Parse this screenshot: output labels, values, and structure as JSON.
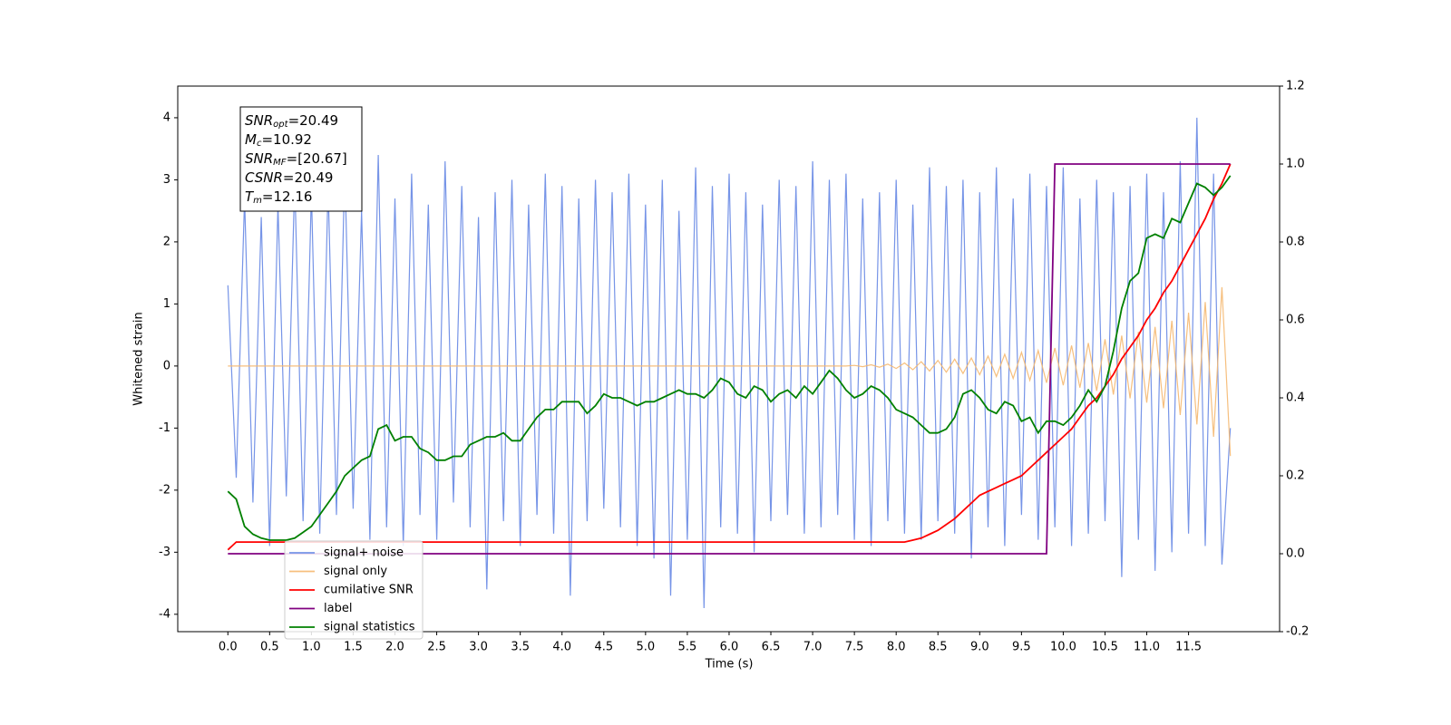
{
  "chart_data": {
    "type": "line",
    "xlabel": "Time (s)",
    "ylabel": "Whitened strain",
    "annotation": [
      {
        "text": "SNR",
        "sub": "opt",
        "value": "=20.49"
      },
      {
        "text": "M",
        "sub": "c",
        "value": "=10.92"
      },
      {
        "text": "SNR",
        "sub": "MF",
        "value": "=[20.67]"
      },
      {
        "text": "CSNR",
        "value": "=20.49"
      },
      {
        "text": "T",
        "sub": "m",
        "value": "=12.16"
      }
    ],
    "xlim": [
      -0.6,
      12.59
    ],
    "ylim": [
      -4.28,
      4.51
    ],
    "y2lim": [
      -0.2,
      1.2
    ],
    "xticks": [
      {
        "value": 0,
        "label": "0.0"
      },
      0.5,
      {
        "value": 1,
        "label": "1.0"
      },
      1.5,
      {
        "value": 2,
        "label": "2.0"
      },
      2.5,
      {
        "value": 3,
        "label": "3.0"
      },
      3.5,
      {
        "value": 4,
        "label": "4.0"
      },
      4.5,
      {
        "value": 5,
        "label": "5.0"
      },
      5.5,
      {
        "value": 6,
        "label": "6.0"
      },
      6.5,
      {
        "value": 7,
        "label": "7.0"
      },
      7.5,
      {
        "value": 8,
        "label": "8.0"
      },
      8.5,
      {
        "value": 9,
        "label": "9.0"
      },
      9.5,
      {
        "value": 10,
        "label": "10.0"
      },
      10.5,
      {
        "value": 11,
        "label": "11.0"
      },
      11.5
    ],
    "yticks": [
      -4,
      -3,
      -2,
      -1,
      0,
      1,
      2,
      3,
      4
    ],
    "y2ticks": [
      -0.2,
      {
        "value": 0,
        "label": "0.0"
      },
      0.2,
      0.4,
      0.6,
      0.8,
      {
        "value": 1,
        "label": "1.0"
      },
      1.2
    ],
    "x": [
      0,
      0.1,
      0.2,
      0.3,
      0.4,
      0.5,
      0.6,
      0.7,
      0.8,
      0.9,
      1,
      1.1,
      1.2,
      1.3,
      1.4,
      1.5,
      1.6,
      1.7,
      1.8,
      1.9,
      2,
      2.1,
      2.2,
      2.3,
      2.4,
      2.5,
      2.6,
      2.7,
      2.8,
      2.9,
      3,
      3.1,
      3.2,
      3.3,
      3.4,
      3.5,
      3.6,
      3.7,
      3.8,
      3.9,
      4,
      4.1,
      4.2,
      4.3,
      4.4,
      4.5,
      4.6,
      4.7,
      4.8,
      4.9,
      5,
      5.1,
      5.2,
      5.3,
      5.4,
      5.5,
      5.6,
      5.7,
      5.8,
      5.9,
      6,
      6.1,
      6.2,
      6.3,
      6.4,
      6.5,
      6.6,
      6.7,
      6.8,
      6.9,
      7,
      7.1,
      7.2,
      7.3,
      7.4,
      7.5,
      7.6,
      7.7,
      7.8,
      7.9,
      8,
      8.1,
      8.2,
      8.3,
      8.4,
      8.5,
      8.6,
      8.7,
      8.8,
      8.9,
      9,
      9.1,
      9.2,
      9.3,
      9.4,
      9.5,
      9.6,
      9.7,
      9.8,
      9.9,
      10,
      10.1,
      10.2,
      10.3,
      10.4,
      10.5,
      10.6,
      10.7,
      10.8,
      10.9,
      11,
      11.1,
      11.2,
      11.3,
      11.4,
      11.5,
      11.6,
      11.7,
      11.8,
      11.9,
      12
    ],
    "series": [
      {
        "name": "signal+ noise",
        "color": "#6f8ee6",
        "opacity": 0.95,
        "values": [
          1.3,
          -1.8,
          2.7,
          -2.2,
          2.4,
          -2.9,
          2.6,
          -2.1,
          3.0,
          -2.5,
          2.8,
          -2.7,
          2.9,
          -2.4,
          3.2,
          -2.3,
          2.5,
          -2.8,
          3.4,
          -2.6,
          2.7,
          -2.9,
          3.1,
          -2.4,
          2.6,
          -2.8,
          3.3,
          -2.2,
          2.9,
          -2.6,
          2.4,
          -3.6,
          2.8,
          -2.5,
          3.0,
          -2.9,
          2.6,
          -2.4,
          3.1,
          -2.7,
          2.9,
          -3.7,
          2.7,
          -2.5,
          3.0,
          -2.3,
          2.8,
          -2.6,
          3.1,
          -2.9,
          2.6,
          -3.1,
          3.0,
          -3.7,
          2.5,
          -2.8,
          3.2,
          -3.9,
          2.9,
          -2.6,
          3.1,
          -2.7,
          2.8,
          -3.0,
          2.6,
          -2.5,
          3.0,
          -2.4,
          2.9,
          -2.7,
          3.3,
          -2.6,
          3.0,
          -2.4,
          3.1,
          -2.8,
          2.7,
          -2.9,
          2.8,
          -2.5,
          3.0,
          -2.7,
          2.6,
          -2.8,
          3.2,
          -2.5,
          2.9,
          -2.7,
          3.0,
          -3.1,
          2.8,
          -2.6,
          3.2,
          -2.9,
          2.7,
          -2.4,
          3.1,
          -2.8,
          2.9,
          -2.6,
          3.2,
          -2.9,
          2.7,
          -2.7,
          3.0,
          -2.5,
          2.8,
          -3.4,
          2.9,
          -2.8,
          3.1,
          -3.3,
          2.8,
          -3.0,
          3.3,
          -2.7,
          4.0,
          -2.9,
          3.1,
          -3.2,
          -1.0
        ]
      },
      {
        "name": "signal only",
        "color": "#f5b870",
        "opacity": 0.9,
        "values": [
          0,
          0,
          0,
          0,
          0,
          0,
          0,
          0,
          0,
          0,
          0,
          0,
          0,
          0,
          0,
          0,
          0,
          0,
          0,
          0,
          0,
          0,
          0,
          0,
          0,
          0,
          0,
          0,
          0,
          0,
          0,
          0,
          0,
          0,
          0,
          0,
          0,
          0,
          0,
          0,
          0,
          0,
          0,
          0,
          0,
          0,
          0,
          0,
          0,
          0,
          0,
          0,
          0,
          0,
          0,
          0,
          0,
          0,
          0,
          0,
          0,
          0,
          0,
          0,
          0,
          0,
          0,
          0,
          0,
          0,
          0,
          0,
          0,
          0,
          0,
          0.01,
          -0.01,
          0.02,
          -0.02,
          0.03,
          -0.04,
          0.05,
          -0.06,
          0.07,
          -0.08,
          0.09,
          -0.1,
          0.11,
          -0.12,
          0.13,
          -0.14,
          0.16,
          -0.17,
          0.19,
          -0.2,
          0.22,
          -0.23,
          0.25,
          -0.27,
          0.29,
          -0.31,
          0.33,
          -0.35,
          0.37,
          -0.4,
          0.43,
          -0.46,
          0.49,
          -0.52,
          0.55,
          -0.59,
          0.63,
          -0.68,
          0.73,
          -0.79,
          0.86,
          -0.94,
          1.03,
          -1.14,
          1.27,
          -1.45
        ]
      },
      {
        "name": "cumilative SNR",
        "color": "#ff0000",
        "axis": "y2",
        "values": [
          0.01,
          0.03,
          0.03,
          0.03,
          0.03,
          0.03,
          0.03,
          0.03,
          0.03,
          0.03,
          0.03,
          0.03,
          0.03,
          0.03,
          0.03,
          0.03,
          0.03,
          0.03,
          0.03,
          0.03,
          0.03,
          0.03,
          0.03,
          0.03,
          0.03,
          0.03,
          0.03,
          0.03,
          0.03,
          0.03,
          0.03,
          0.03,
          0.03,
          0.03,
          0.03,
          0.03,
          0.03,
          0.03,
          0.03,
          0.03,
          0.03,
          0.03,
          0.03,
          0.03,
          0.03,
          0.03,
          0.03,
          0.03,
          0.03,
          0.03,
          0.03,
          0.03,
          0.03,
          0.03,
          0.03,
          0.03,
          0.03,
          0.03,
          0.03,
          0.03,
          0.03,
          0.03,
          0.03,
          0.03,
          0.03,
          0.03,
          0.03,
          0.03,
          0.03,
          0.03,
          0.03,
          0.03,
          0.03,
          0.03,
          0.03,
          0.03,
          0.03,
          0.03,
          0.03,
          0.03,
          0.03,
          0.03,
          0.035,
          0.04,
          0.05,
          0.06,
          0.075,
          0.09,
          0.11,
          0.13,
          0.15,
          0.16,
          0.17,
          0.18,
          0.19,
          0.2,
          0.22,
          0.24,
          0.26,
          0.28,
          0.3,
          0.32,
          0.35,
          0.38,
          0.4,
          0.43,
          0.46,
          0.5,
          0.53,
          0.56,
          0.6,
          0.63,
          0.67,
          0.7,
          0.74,
          0.78,
          0.82,
          0.86,
          0.91,
          0.95,
          1.0
        ]
      },
      {
        "name": "label",
        "color": "#800080",
        "axis": "y2",
        "values": [
          0,
          0,
          0,
          0,
          0,
          0,
          0,
          0,
          0,
          0,
          0,
          0,
          0,
          0,
          0,
          0,
          0,
          0,
          0,
          0,
          0,
          0,
          0,
          0,
          0,
          0,
          0,
          0,
          0,
          0,
          0,
          0,
          0,
          0,
          0,
          0,
          0,
          0,
          0,
          0,
          0,
          0,
          0,
          0,
          0,
          0,
          0,
          0,
          0,
          0,
          0,
          0,
          0,
          0,
          0,
          0,
          0,
          0,
          0,
          0,
          0,
          0,
          0,
          0,
          0,
          0,
          0,
          0,
          0,
          0,
          0,
          0,
          0,
          0,
          0,
          0,
          0,
          0,
          0,
          0,
          0,
          0,
          0,
          0,
          0,
          0,
          0,
          0,
          0,
          0,
          0,
          0,
          0,
          0,
          0,
          0,
          0,
          0,
          0,
          1,
          1,
          1,
          1,
          1,
          1,
          1,
          1,
          1,
          1,
          1,
          1,
          1,
          1,
          1,
          1,
          1,
          1,
          1,
          1,
          1,
          1
        ]
      },
      {
        "name": "signal statistics",
        "color": "#008000",
        "axis": "y2",
        "values": [
          0.16,
          0.14,
          0.07,
          0.05,
          0.04,
          0.035,
          0.035,
          0.035,
          0.04,
          0.055,
          0.07,
          0.1,
          0.13,
          0.16,
          0.2,
          0.22,
          0.24,
          0.25,
          0.32,
          0.33,
          0.29,
          0.3,
          0.3,
          0.27,
          0.26,
          0.24,
          0.24,
          0.25,
          0.25,
          0.28,
          0.29,
          0.3,
          0.3,
          0.31,
          0.29,
          0.29,
          0.32,
          0.35,
          0.37,
          0.37,
          0.39,
          0.39,
          0.39,
          0.36,
          0.38,
          0.41,
          0.4,
          0.4,
          0.39,
          0.38,
          0.39,
          0.39,
          0.4,
          0.41,
          0.42,
          0.41,
          0.41,
          0.4,
          0.42,
          0.45,
          0.44,
          0.41,
          0.4,
          0.43,
          0.42,
          0.39,
          0.41,
          0.42,
          0.4,
          0.43,
          0.41,
          0.44,
          0.47,
          0.45,
          0.42,
          0.4,
          0.41,
          0.43,
          0.42,
          0.4,
          0.37,
          0.36,
          0.35,
          0.33,
          0.31,
          0.31,
          0.32,
          0.35,
          0.41,
          0.42,
          0.4,
          0.37,
          0.36,
          0.39,
          0.38,
          0.34,
          0.35,
          0.31,
          0.34,
          0.34,
          0.33,
          0.35,
          0.38,
          0.42,
          0.39,
          0.43,
          0.52,
          0.63,
          0.7,
          0.72,
          0.81,
          0.82,
          0.81,
          0.86,
          0.85,
          0.9,
          0.95,
          0.94,
          0.92,
          0.94,
          0.97
        ]
      }
    ]
  }
}
